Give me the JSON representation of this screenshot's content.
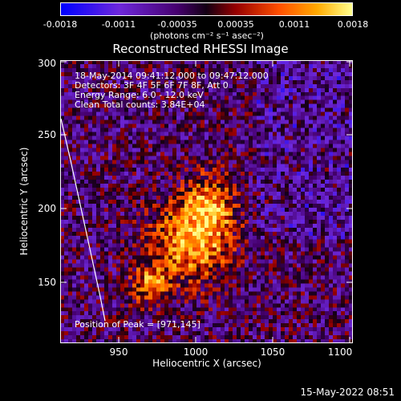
{
  "colorbar": {
    "ticks": [
      "-0.0018",
      "-0.0011",
      "-0.00035",
      "0.00035",
      "0.0011",
      "0.0018"
    ],
    "unit_label": "(photons cm⁻² s⁻¹ asec⁻²)",
    "colors": [
      "#0000ff",
      "#7b2be0",
      "#1a001a",
      "#8b0000",
      "#ff4000",
      "#ffa000",
      "#ffff80"
    ]
  },
  "title": "Reconstructed RHESSI Image",
  "info": {
    "line1": "18-May-2014 09:41:12.000 to 09:47:12.000",
    "line2": "Detectors: 3F 4F 5F 6F 7F 8F, Att 0",
    "line3": "Energy Range: 6.0 - 12.0 keV",
    "line4": "Clean     Total counts: 3.84E+04",
    "peak": "Position of Peak = [971,145]"
  },
  "axes": {
    "xlabel": "Heliocentric X (arcsec)",
    "ylabel": "Heliocentric Y (arcsec)",
    "xticks": [
      "950",
      "1000",
      "1050",
      "1100"
    ],
    "yticks": [
      "150",
      "200",
      "250",
      "300"
    ],
    "xrange": [
      910,
      1100
    ],
    "yrange": [
      108,
      300
    ]
  },
  "timestamp": "15-May-2022 08:51"
}
